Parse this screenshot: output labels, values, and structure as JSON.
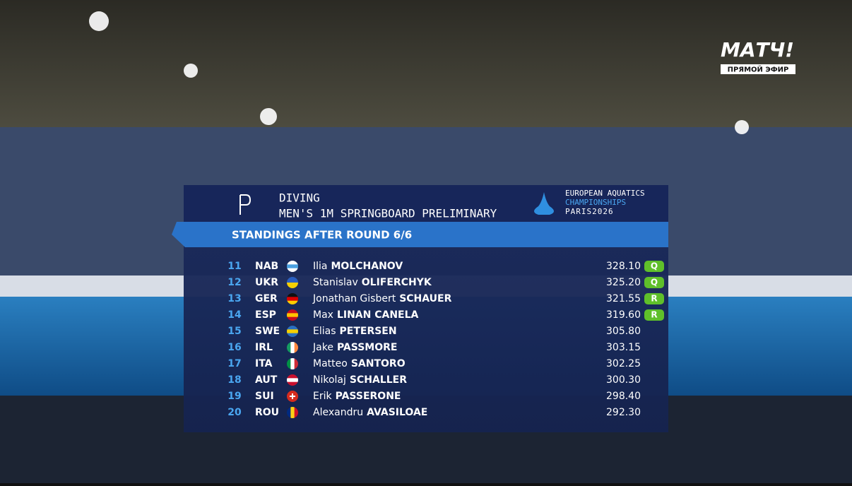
{
  "channel": {
    "name": "МАТЧ!",
    "status": "ПРЯМОЙ ЭФИР"
  },
  "header": {
    "sport": "DIVING",
    "event": "MEN'S 1M SPRINGBOARD PRELIMINARY",
    "logo": {
      "line1": "EUROPEAN AQUATICS",
      "line2": "CHAMPIONSHIPS",
      "line3": "PARIS2026"
    }
  },
  "banner": "STANDINGS AFTER ROUND 6/6",
  "table": {
    "rows": [
      {
        "rank": 11,
        "code": "NAB",
        "first": "Ilia",
        "last": "MOLCHANOV",
        "score": "328.10",
        "badge": "Q"
      },
      {
        "rank": 12,
        "code": "UKR",
        "first": "Stanislav",
        "last": "OLIFERCHYK",
        "score": "325.20",
        "badge": "Q"
      },
      {
        "rank": 13,
        "code": "GER",
        "first": "Jonathan Gisbert",
        "last": "SCHAUER",
        "score": "321.55",
        "badge": "R"
      },
      {
        "rank": 14,
        "code": "ESP",
        "first": "Max",
        "last": "LINAN CANELA",
        "score": "319.60",
        "badge": "R"
      },
      {
        "rank": 15,
        "code": "SWE",
        "first": "Elias",
        "last": "PETERSEN",
        "score": "305.80"
      },
      {
        "rank": 16,
        "code": "IRL",
        "first": "Jake",
        "last": "PASSMORE",
        "score": "303.15"
      },
      {
        "rank": 17,
        "code": "ITA",
        "first": "Matteo",
        "last": "SANTORO",
        "score": "302.25"
      },
      {
        "rank": 18,
        "code": "AUT",
        "first": "Nikolaj",
        "last": "SCHALLER",
        "score": "300.30"
      },
      {
        "rank": 19,
        "code": "SUI",
        "first": "Erik",
        "last": "PASSERONE",
        "score": "298.40"
      },
      {
        "rank": 20,
        "code": "ROU",
        "first": "Alexandru",
        "last": "AVASILOAE",
        "score": "292.30"
      }
    ]
  }
}
